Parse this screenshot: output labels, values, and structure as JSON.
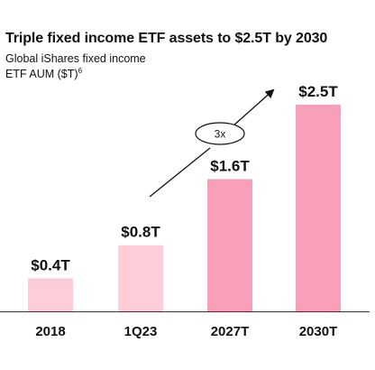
{
  "title": "Triple fixed income ETF assets to $2.5T by 2030",
  "subtitle_line1": "Global iShares fixed income",
  "subtitle_line2": "ETF AUM ($T)",
  "subtitle_footnote": "6",
  "chart_data": {
    "type": "bar",
    "categories": [
      "2018",
      "1Q23",
      "2027T",
      "2030T"
    ],
    "values": [
      0.4,
      0.8,
      1.6,
      2.5
    ],
    "data_labels": [
      "$0.4T",
      "$0.8T",
      "$1.6T",
      "$2.5T"
    ],
    "title": "Triple fixed income ETF assets to $2.5T by 2030",
    "ylabel": "",
    "xlabel": "",
    "ylim": [
      0,
      2.5
    ],
    "grid": false,
    "colors": {
      "actual": "#ffcdd8",
      "target": "#f8a0b9",
      "axis": "#333333"
    },
    "annotation": {
      "text": "3x",
      "shape": "ellipse-callout-with-upward-arrow"
    }
  }
}
